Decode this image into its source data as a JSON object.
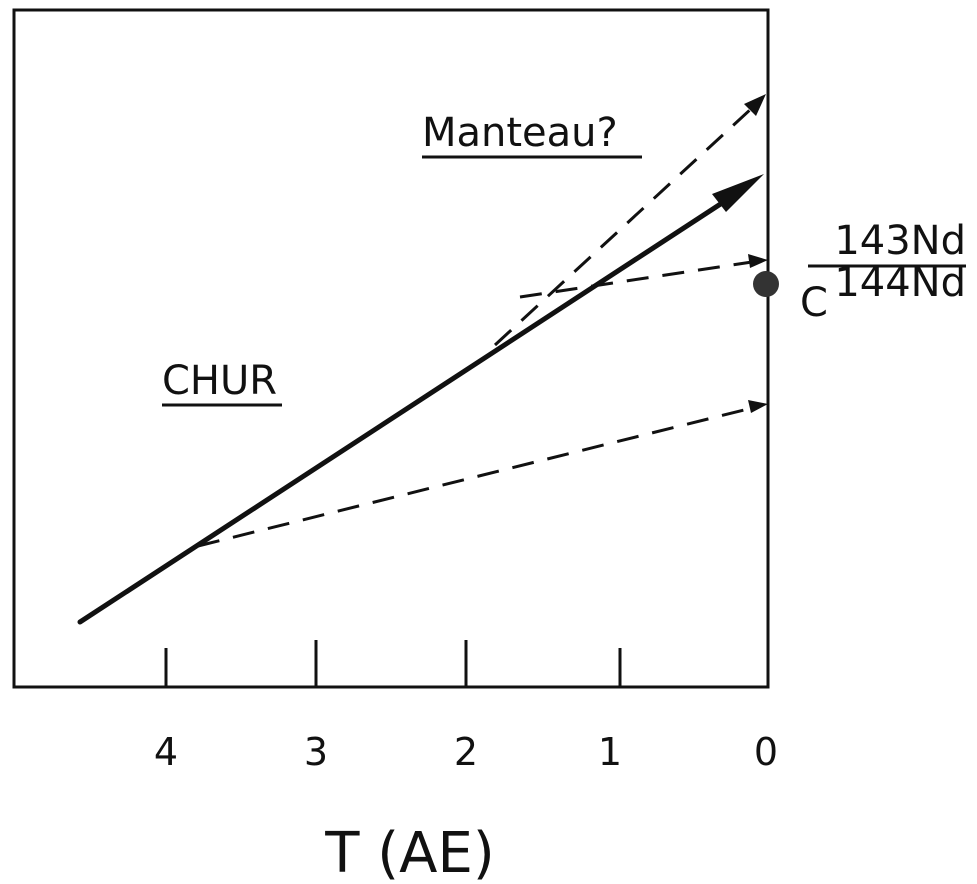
{
  "diagram": {
    "x_axis": {
      "title": "T (AE)",
      "ticks": [
        {
          "value": 4,
          "label": "4"
        },
        {
          "value": 3,
          "label": "3"
        },
        {
          "value": 2,
          "label": "2"
        },
        {
          "value": 1,
          "label": "1"
        },
        {
          "value": 0,
          "label": "0"
        }
      ]
    },
    "labels": {
      "chur": "CHUR",
      "mantle": "Manteau?",
      "ratio_numerator": "143Nd",
      "ratio_prefix": "C",
      "ratio_denominator": "144Nd"
    },
    "colors": {
      "ink": "#111111",
      "background": "#ffffff"
    }
  }
}
